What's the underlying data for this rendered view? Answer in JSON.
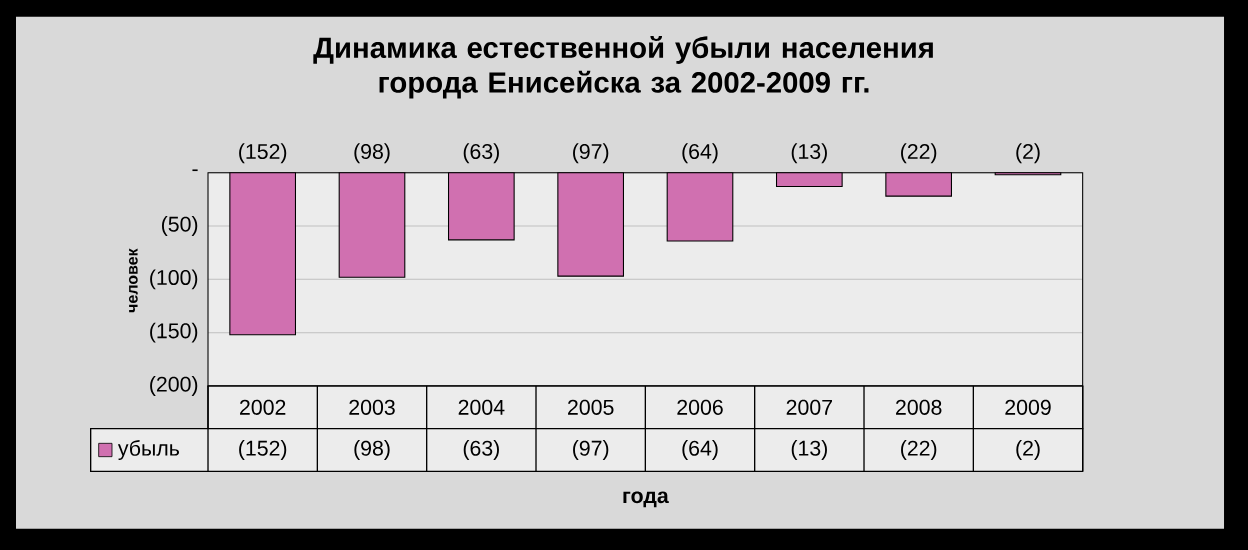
{
  "chart_data": {
    "type": "bar",
    "title": "Динамика естественной убыли населения города Енисейска за 2002-2009 гг.",
    "xlabel": "года",
    "ylabel": "человек",
    "categories": [
      "2002",
      "2003",
      "2004",
      "2005",
      "2006",
      "2007",
      "2008",
      "2009"
    ],
    "series": [
      {
        "name": "убыль",
        "color": "#d070b0",
        "values": [
          -152,
          -98,
          -63,
          -97,
          -64,
          -13,
          -22,
          -2
        ],
        "value_labels": [
          "(152)",
          "(98)",
          "(63)",
          "(97)",
          "(64)",
          "(13)",
          "(22)",
          "(2)"
        ]
      }
    ],
    "ylim": [
      -200,
      0
    ],
    "yticks": [
      {
        "value": -200,
        "label": "(200)"
      },
      {
        "value": -150,
        "label": "(150)"
      },
      {
        "value": -100,
        "label": "(100)"
      },
      {
        "value": -50,
        "label": "(50)"
      },
      {
        "value": 0,
        "label": "-"
      }
    ],
    "grid": "y",
    "legend": "bottom"
  }
}
